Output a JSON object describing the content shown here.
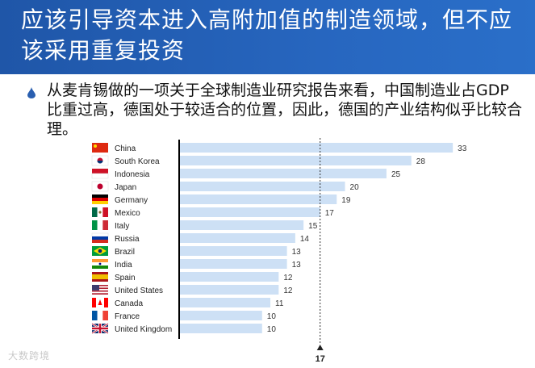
{
  "slide": {
    "title": "应该引导资本进入高附加值的制造领域，但不应该采用重复投资",
    "bullet_text": "从麦肯锡做的一项关于全球制造业研究报告来看，中国制造业占GDP比重过高，德国处于较适合的位置，因此，德国的产业结构似乎比较合理。",
    "watermark": "大数跨境"
  },
  "chart_data": {
    "type": "bar",
    "orientation": "horizontal",
    "categories": [
      "China",
      "South Korea",
      "Indonesia",
      "Japan",
      "Germany",
      "Mexico",
      "Italy",
      "Russia",
      "Brazil",
      "India",
      "Spain",
      "United States",
      "Canada",
      "France",
      "United Kingdom"
    ],
    "values": [
      33,
      28,
      25,
      20,
      19,
      17,
      15,
      14,
      13,
      13,
      12,
      12,
      11,
      10,
      10
    ],
    "flags": [
      "china-flag-icon",
      "south-korea-flag-icon",
      "indonesia-flag-icon",
      "japan-flag-icon",
      "germany-flag-icon",
      "mexico-flag-icon",
      "italy-flag-icon",
      "russia-flag-icon",
      "brazil-flag-icon",
      "india-flag-icon",
      "spain-flag-icon",
      "united-states-flag-icon",
      "canada-flag-icon",
      "france-flag-icon",
      "united-kingdom-flag-icon"
    ],
    "reference_line": {
      "value": 17,
      "label": "17",
      "style": "dashed"
    },
    "xlim": [
      0,
      36
    ],
    "bar_color": "#cde0f5",
    "grid": false,
    "legend": false
  }
}
